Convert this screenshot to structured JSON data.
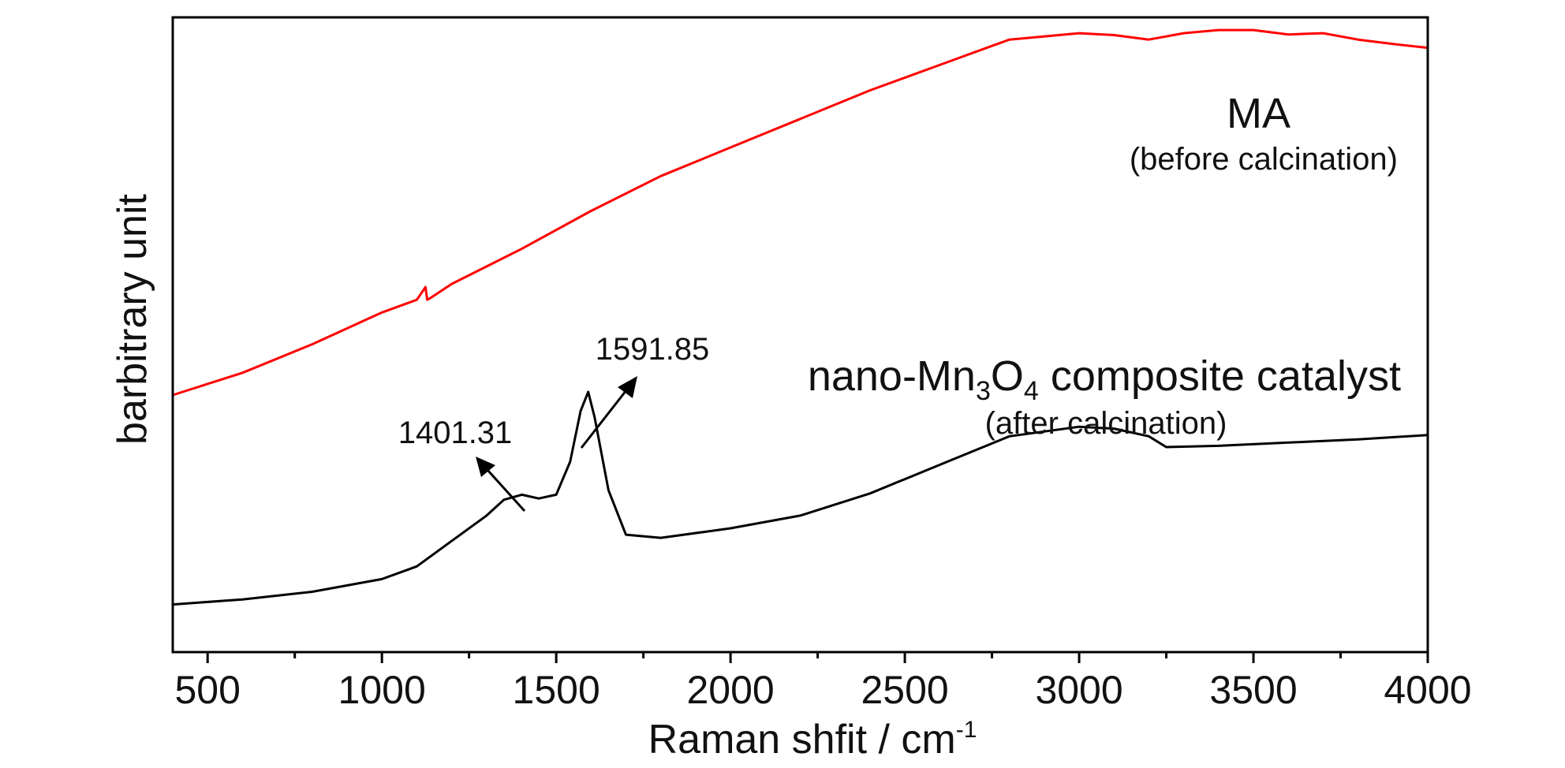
{
  "chart_data": {
    "type": "line",
    "xlabel": "Raman shfit / cm",
    "xlabel_sup": "-1",
    "ylabel": "barbitrary unit",
    "xlim": [
      400,
      4000
    ],
    "ylim": [
      0,
      100
    ],
    "x_ticks": [
      500,
      1000,
      1500,
      2000,
      2500,
      3000,
      3500,
      4000
    ],
    "x_tick_labels": [
      "500",
      "1000",
      "1500",
      "2000",
      "2500",
      "3000",
      "3500",
      "4000"
    ],
    "y_tick_labels_shown": false,
    "grid": false,
    "legend": "none",
    "series": [
      {
        "color": "#ff0000",
        "x": [
          400,
          600,
          800,
          1000,
          1100,
          1125,
          1130,
          1140,
          1200,
          1400,
          1600,
          1800,
          2000,
          2200,
          2400,
          2600,
          2750,
          2800,
          3000,
          3100,
          3200,
          3300,
          3400,
          3500,
          3600,
          3700,
          3800,
          3900,
          4000
        ],
        "values": [
          40.5,
          44.0,
          48.5,
          53.5,
          55.5,
          57.5,
          55.5,
          55.8,
          58.0,
          63.5,
          69.5,
          75.0,
          79.5,
          84.0,
          88.5,
          92.5,
          95.5,
          96.5,
          97.5,
          97.2,
          96.5,
          97.5,
          98.0,
          98.0,
          97.3,
          97.5,
          96.5,
          95.8,
          95.2
        ]
      },
      {
        "color": "#000000",
        "x": [
          400,
          600,
          800,
          1000,
          1100,
          1200,
          1300,
          1350,
          1401.31,
          1450,
          1500,
          1540,
          1570,
          1591.85,
          1610,
          1650,
          1700,
          1800,
          2000,
          2200,
          2400,
          2600,
          2800,
          3000,
          3100,
          3200,
          3250,
          3400,
          3600,
          3800,
          4000
        ],
        "values": [
          7.5,
          8.3,
          9.5,
          11.5,
          13.5,
          17.5,
          21.5,
          24.0,
          24.8,
          24.2,
          24.8,
          30.0,
          38.0,
          41.0,
          37.0,
          25.5,
          18.5,
          18.0,
          19.5,
          21.5,
          25.0,
          29.5,
          34.0,
          35.5,
          35.2,
          34.0,
          32.3,
          32.5,
          33.0,
          33.5,
          34.2
        ]
      }
    ],
    "annotations": {
      "peak1": "1401.31",
      "peak2": "1591.85",
      "ma_label": "MA",
      "ma_sub": "(before calcination)",
      "cat_label_a": "nano-Mn",
      "cat_sub3": "3",
      "cat_label_b": "O",
      "cat_sub4": "4",
      "cat_label_c": " composite catalyst",
      "cat_sub": "(after calcination)"
    }
  }
}
